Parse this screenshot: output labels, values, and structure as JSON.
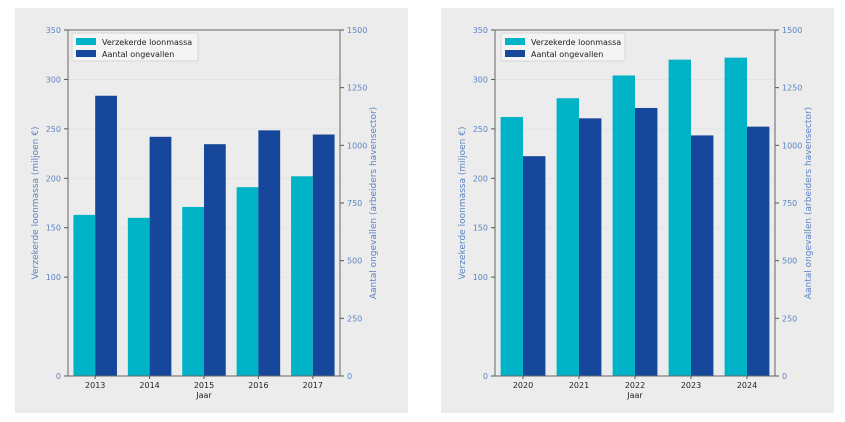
{
  "colors": {
    "loonmassa": "#00b3c6",
    "ongevallen": "#17479a",
    "axis_label": "#5b84c4",
    "panel_bg": "#ececec"
  },
  "chart_data": [
    {
      "type": "bar",
      "xlabel": "Jaar",
      "ylabel": "Verzekerde loonmassa (miljoen €)",
      "y2label": "Aantal ongevallen (arbeiders havensector)",
      "categories": [
        "2013",
        "2014",
        "2015",
        "2016",
        "2017"
      ],
      "ylim": [
        0,
        350
      ],
      "yticks": [
        "0",
        "100",
        "150",
        "200",
        "250",
        "300",
        "350"
      ],
      "y2lim": [
        0,
        1500
      ],
      "y2ticks": [
        "0",
        "250",
        "500",
        "750",
        "1000",
        "1250",
        "1500"
      ],
      "legend": "top-left",
      "grid": true,
      "series": [
        {
          "name": "Verzekerde loonmassa",
          "axis": "left",
          "values": [
            163,
            160,
            171,
            191,
            202
          ]
        },
        {
          "name": "Aantal ongevallen",
          "axis": "right",
          "values": [
            1215,
            1037,
            1005,
            1065,
            1047
          ]
        }
      ]
    },
    {
      "type": "bar",
      "xlabel": "Jaar",
      "ylabel": "Verzekerde loonmassa (miljoen €)",
      "y2label": "Aantal ongevallen (arbeiders havensector)",
      "categories": [
        "2020",
        "2021",
        "2022",
        "2023",
        "2024"
      ],
      "ylim": [
        0,
        350
      ],
      "yticks": [
        "0",
        "100",
        "150",
        "200",
        "250",
        "300",
        "350"
      ],
      "y2lim": [
        0,
        1500
      ],
      "y2ticks": [
        "0",
        "250",
        "500",
        "750",
        "1000",
        "1250",
        "1500"
      ],
      "legend": "top-left",
      "grid": true,
      "series": [
        {
          "name": "Verzekerde loonmassa",
          "axis": "left",
          "values": [
            262,
            281,
            304,
            320,
            322
          ]
        },
        {
          "name": "Aantal ongevallen",
          "axis": "right",
          "values": [
            953,
            1117,
            1162,
            1043,
            1081
          ]
        }
      ]
    }
  ]
}
